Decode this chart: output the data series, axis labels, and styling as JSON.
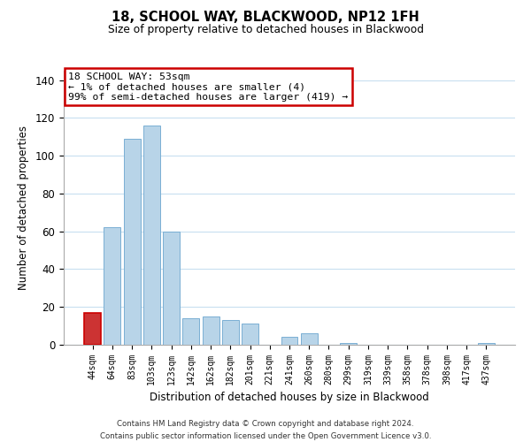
{
  "title": "18, SCHOOL WAY, BLACKWOOD, NP12 1FH",
  "subtitle": "Size of property relative to detached houses in Blackwood",
  "xlabel": "Distribution of detached houses by size in Blackwood",
  "ylabel": "Number of detached properties",
  "categories": [
    "44sqm",
    "64sqm",
    "83sqm",
    "103sqm",
    "123sqm",
    "142sqm",
    "162sqm",
    "182sqm",
    "201sqm",
    "221sqm",
    "241sqm",
    "260sqm",
    "280sqm",
    "299sqm",
    "319sqm",
    "339sqm",
    "358sqm",
    "378sqm",
    "398sqm",
    "417sqm",
    "437sqm"
  ],
  "values": [
    17,
    62,
    109,
    116,
    60,
    14,
    15,
    13,
    11,
    0,
    4,
    6,
    0,
    1,
    0,
    0,
    0,
    0,
    0,
    0,
    1
  ],
  "highlight_bar": 0,
  "bar_color": "#b8d4e8",
  "highlight_color": "#cc3333",
  "bar_edge_color": "#7aafd4",
  "highlight_edge_color": "#cc0000",
  "ylim": [
    0,
    145
  ],
  "yticks": [
    0,
    20,
    40,
    60,
    80,
    100,
    120,
    140
  ],
  "annotation_title": "18 SCHOOL WAY: 53sqm",
  "annotation_line1": "← 1% of detached houses are smaller (4)",
  "annotation_line2": "99% of semi-detached houses are larger (419) →",
  "annotation_box_color": "#ffffff",
  "annotation_box_edge": "#cc0000",
  "footer_line1": "Contains HM Land Registry data © Crown copyright and database right 2024.",
  "footer_line2": "Contains public sector information licensed under the Open Government Licence v3.0.",
  "background_color": "#ffffff",
  "grid_color": "#c8dff0"
}
